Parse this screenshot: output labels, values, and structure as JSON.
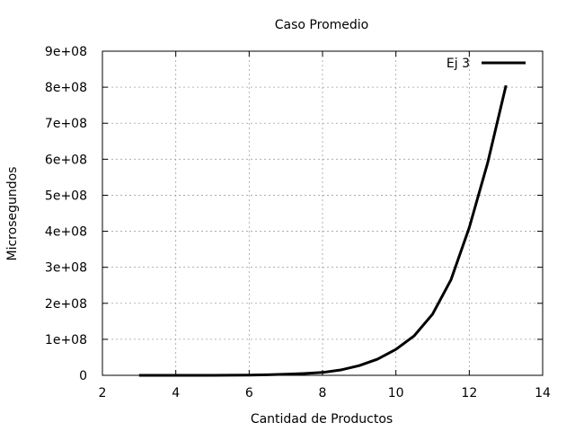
{
  "chart_data": {
    "type": "line",
    "title": "Caso Promedio",
    "xlabel": "Cantidad de Productos",
    "ylabel": "Microsegundos",
    "xlim": [
      2,
      14
    ],
    "ylim": [
      0,
      900000000
    ],
    "x_ticks": [
      2,
      4,
      6,
      8,
      10,
      12,
      14
    ],
    "x_tick_labels": [
      "2",
      "4",
      "6",
      "8",
      "10",
      "12",
      "14"
    ],
    "y_ticks": [
      0,
      100000000,
      200000000,
      300000000,
      400000000,
      500000000,
      600000000,
      700000000,
      800000000,
      900000000
    ],
    "y_tick_labels": [
      "0",
      "1e+08",
      "2e+08",
      "3e+08",
      "4e+08",
      "5e+08",
      "6e+08",
      "7e+08",
      "8e+08",
      "9e+08"
    ],
    "grid": true,
    "legend_position": "top-right",
    "series": [
      {
        "name": "Ej 3",
        "color": "#000000",
        "x": [
          3,
          4,
          5,
          6,
          6.5,
          7,
          7.5,
          8,
          8.5,
          9,
          9.5,
          10,
          10.5,
          11,
          11.5,
          12,
          12.5,
          13
        ],
        "y": [
          0,
          0,
          100000,
          500000,
          1500000,
          3000000,
          5000000,
          8000000,
          15000000,
          27000000,
          45000000,
          72000000,
          110000000,
          170000000,
          265000000,
          410000000,
          590000000,
          805000000
        ]
      }
    ]
  }
}
